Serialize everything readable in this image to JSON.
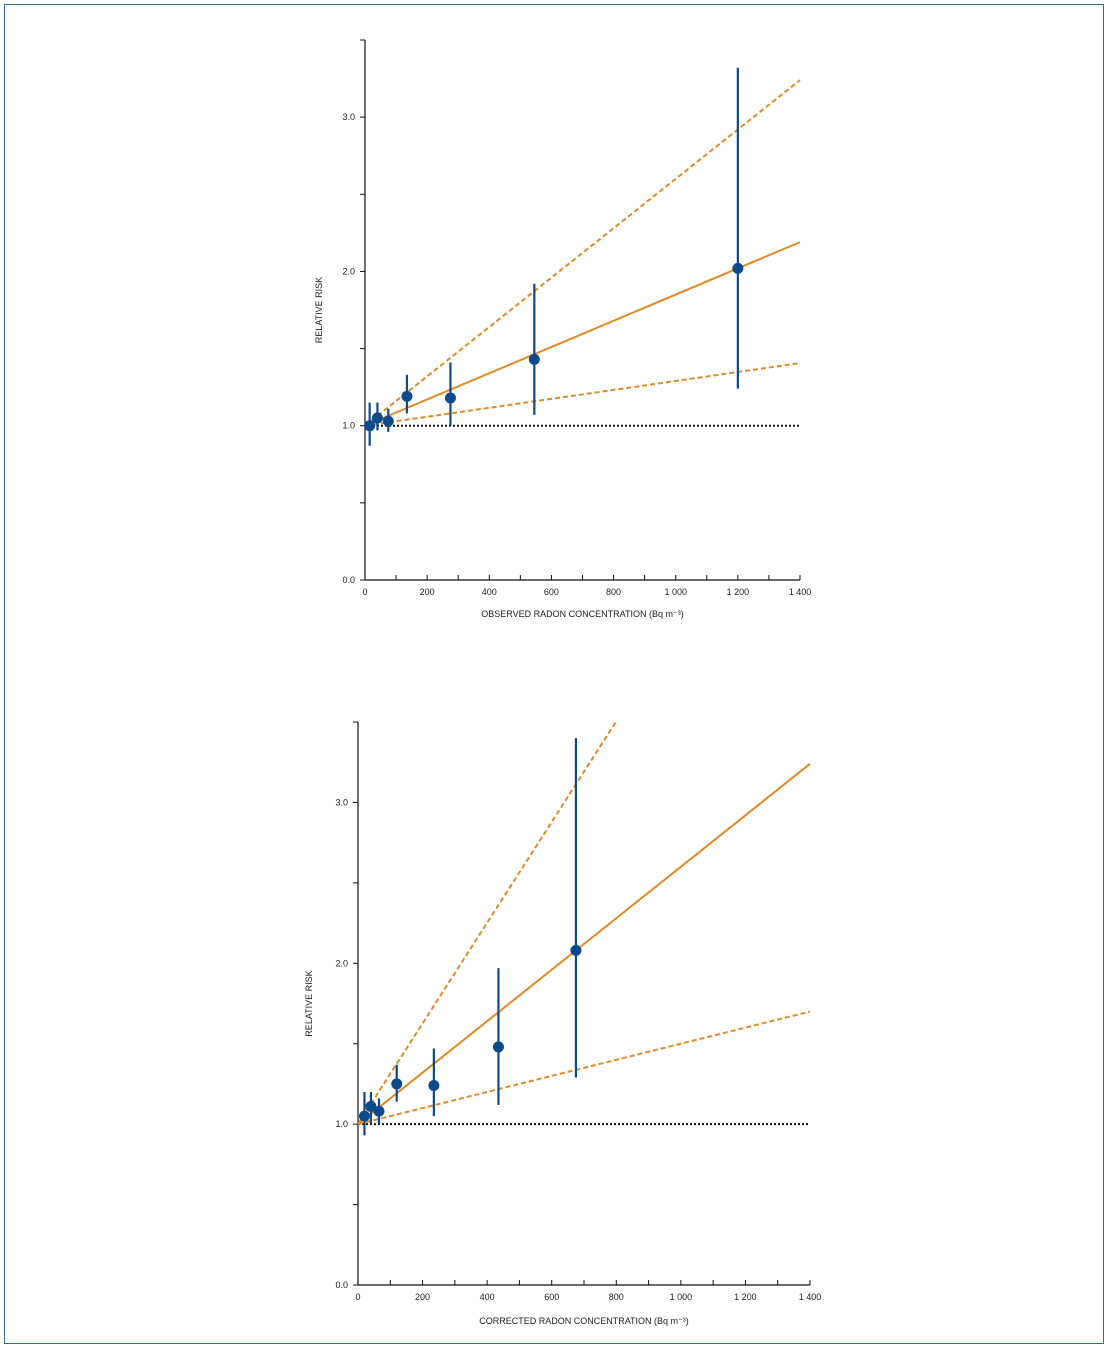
{
  "colors": {
    "frame": "#2f6e9e",
    "points": "#0d4a8a",
    "fit": "#e28a26",
    "baseline": "#111111"
  },
  "chart_data": [
    {
      "type": "scatter",
      "xlabel": "OBSERVED RADON CONCENTRATION (Bq m⁻³)",
      "ylabel": "RELATIVE RISK",
      "xlim": [
        0,
        1400
      ],
      "ylim": [
        0,
        3.5
      ],
      "xticks": [
        0,
        200,
        400,
        600,
        800,
        1000,
        1200,
        1400
      ],
      "xtick_labels": [
        "0",
        "200",
        "400",
        "600",
        "800",
        "1 000",
        "1 200",
        "1 400"
      ],
      "yticks": [
        0,
        1,
        2,
        3
      ],
      "ytick_labels": [
        "0.0",
        "1.0",
        "2.0",
        "3.0"
      ],
      "points": [
        {
          "x": 15,
          "y": 1.0,
          "lo": 0.87,
          "hi": 1.15
        },
        {
          "x": 40,
          "y": 1.05,
          "lo": 0.97,
          "hi": 1.15
        },
        {
          "x": 75,
          "y": 1.03,
          "lo": 0.96,
          "hi": 1.11
        },
        {
          "x": 135,
          "y": 1.19,
          "lo": 1.08,
          "hi": 1.33
        },
        {
          "x": 275,
          "y": 1.18,
          "lo": 1.0,
          "hi": 1.41
        },
        {
          "x": 545,
          "y": 1.43,
          "lo": 1.07,
          "hi": 1.92
        },
        {
          "x": 1200,
          "y": 2.02,
          "lo": 1.24,
          "hi": 3.32
        }
      ],
      "fit": {
        "x0": 0,
        "y0": 1.0,
        "slope": 0.00085,
        "x1": 1400
      },
      "ci_upper": {
        "x0": 0,
        "y0": 1.0,
        "slope": 0.0016,
        "x1": 1400
      },
      "ci_lower": {
        "x0": 0,
        "y0": 1.0,
        "slope": 0.00029,
        "x1": 1400
      },
      "baseline": {
        "y": 1.0,
        "x0": 0,
        "x1": 1400
      }
    },
    {
      "type": "scatter",
      "xlabel": "CORRECTED RADON CONCENTRATION (Bq m⁻³)",
      "ylabel": "RELATIVE RISK",
      "xlim": [
        0,
        1400
      ],
      "ylim": [
        0,
        3.5
      ],
      "xticks": [
        0,
        200,
        400,
        600,
        800,
        1000,
        1200,
        1400
      ],
      "xtick_labels": [
        "0",
        "200",
        "400",
        "600",
        "800",
        "1 000",
        "1 200",
        "1 400"
      ],
      "yticks": [
        0,
        1,
        2,
        3
      ],
      "ytick_labels": [
        "0.0",
        "1.0",
        "2.0",
        "3.0"
      ],
      "points": [
        {
          "x": 20,
          "y": 1.05,
          "lo": 0.93,
          "hi": 1.2
        },
        {
          "x": 40,
          "y": 1.11,
          "lo": 1.0,
          "hi": 1.2
        },
        {
          "x": 65,
          "y": 1.08,
          "lo": 1.0,
          "hi": 1.16
        },
        {
          "x": 120,
          "y": 1.25,
          "lo": 1.14,
          "hi": 1.37
        },
        {
          "x": 235,
          "y": 1.24,
          "lo": 1.05,
          "hi": 1.47
        },
        {
          "x": 435,
          "y": 1.48,
          "lo": 1.12,
          "hi": 1.97
        },
        {
          "x": 675,
          "y": 2.08,
          "lo": 1.29,
          "hi": 3.4
        }
      ],
      "fit": {
        "x0": 0,
        "y0": 1.0,
        "slope": 0.0016,
        "x1": 1400
      },
      "ci_upper": {
        "x0": 0,
        "y0": 1.0,
        "slope": 0.00313,
        "x1": 800
      },
      "ci_lower": {
        "x0": 0,
        "y0": 1.0,
        "slope": 0.0005,
        "x1": 1400
      },
      "baseline": {
        "y": 1.0,
        "x0": 0,
        "x1": 1400
      }
    }
  ]
}
